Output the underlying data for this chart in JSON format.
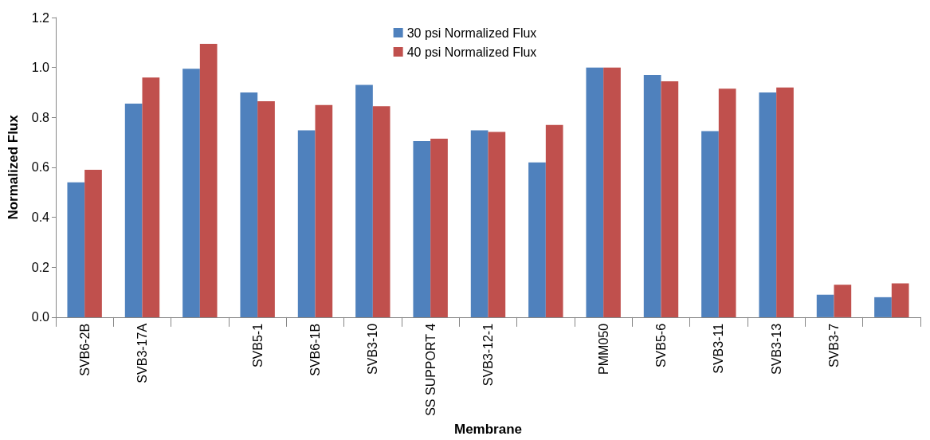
{
  "chart_data": {
    "type": "bar",
    "xlabel": "Membrane",
    "ylabel": "Normalized Flux",
    "categories": [
      "SVB6-2B",
      "SVB3-17A",
      null,
      "SVB5-1",
      "SVB6-1B",
      "SVB3-10",
      "SS SUPPORT 4",
      "SVB3-12-1",
      null,
      "PMM050",
      "SVB5-6",
      "SVB3-11",
      "SVB3-13",
      "SVB3-7",
      null
    ],
    "series": [
      {
        "name": "30 psi Normalized Flux",
        "color": "#4f81bd",
        "values": [
          0.54,
          0.855,
          0.995,
          0.9,
          0.748,
          0.93,
          0.705,
          0.748,
          0.62,
          1.0,
          0.97,
          0.745,
          0.9,
          0.09,
          0.08
        ]
      },
      {
        "name": "40 psi Normalized Flux",
        "color": "#c0504d",
        "values": [
          0.59,
          0.96,
          1.095,
          0.865,
          0.85,
          0.845,
          0.715,
          0.742,
          0.77,
          1.0,
          0.945,
          0.915,
          0.92,
          0.13,
          0.135
        ]
      }
    ],
    "ylim": [
      0,
      1.2
    ],
    "yticks": [
      {
        "value": 0,
        "label": "0.0"
      },
      {
        "value": 0.2,
        "label": "0.2"
      },
      {
        "value": 0.4,
        "label": "0.4"
      },
      {
        "value": 0.6,
        "label": "0.6"
      },
      {
        "value": 0.8,
        "label": "0.8"
      },
      {
        "value": 1.0,
        "label": "1.0"
      },
      {
        "value": 1.2,
        "label": "1.2"
      }
    ],
    "grid": false,
    "legend": "top"
  }
}
